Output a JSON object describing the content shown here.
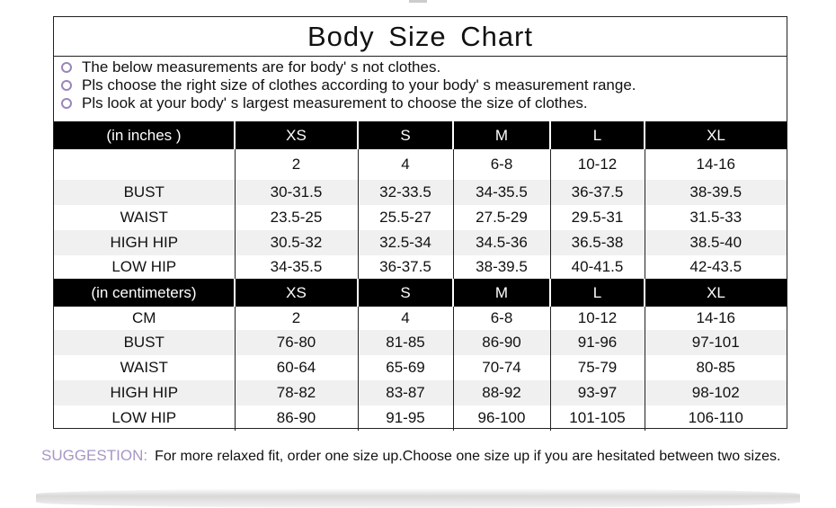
{
  "title": "Body  Size  Chart",
  "notes": [
    "The below measurements are for  body' s not clothes.",
    "Pls choose the right size of clothes according to your body' s  measurement range.",
    "Pls look  at your body' s  largest measurement to choose the size of clothes."
  ],
  "sizes": [
    "XS",
    "S",
    "M",
    "L",
    "XL"
  ],
  "inches": {
    "header": "(in  inches )",
    "rows": [
      {
        "label": "",
        "values": [
          "2",
          "4",
          "6-8",
          "10-12",
          "14-16"
        ]
      },
      {
        "label": "BUST",
        "values": [
          "30-31.5",
          "32-33.5",
          "34-35.5",
          "36-37.5",
          "38-39.5"
        ]
      },
      {
        "label": "WAIST",
        "values": [
          "23.5-25",
          "25.5-27",
          "27.5-29",
          "29.5-31",
          "31.5-33"
        ]
      },
      {
        "label": "HIGH HIP",
        "values": [
          "30.5-32",
          "32.5-34",
          "34.5-36",
          "36.5-38",
          "38.5-40"
        ]
      },
      {
        "label": "LOW HIP",
        "values": [
          "34-35.5",
          "36-37.5",
          "38-39.5",
          "40-41.5",
          "42-43.5"
        ]
      }
    ]
  },
  "centimeters": {
    "header": "(in centimeters)",
    "rows": [
      {
        "label": "CM",
        "values": [
          "2",
          "4",
          "6-8",
          "10-12",
          "14-16"
        ]
      },
      {
        "label": "BUST",
        "values": [
          "76-80",
          "81-85",
          "86-90",
          "91-96",
          "97-101"
        ]
      },
      {
        "label": "WAIST",
        "values": [
          "60-64",
          "65-69",
          "70-74",
          "75-79",
          "80-85"
        ]
      },
      {
        "label": "HIGH HIP",
        "values": [
          "78-82",
          "83-87",
          "88-92",
          "93-97",
          "98-102"
        ]
      },
      {
        "label": "LOW HIP",
        "values": [
          "86-90",
          "91-95",
          "96-100",
          "101-105",
          "106-110"
        ]
      }
    ]
  },
  "suggestion": {
    "label": "SUGGESTION:",
    "text": "For more relaxed fit, order one size up.Choose one size up if you are hesitated between two sizes."
  },
  "colors": {
    "accent": "#a895c6",
    "header_bg": "#000000",
    "alt_row": "#f0f0f0"
  }
}
